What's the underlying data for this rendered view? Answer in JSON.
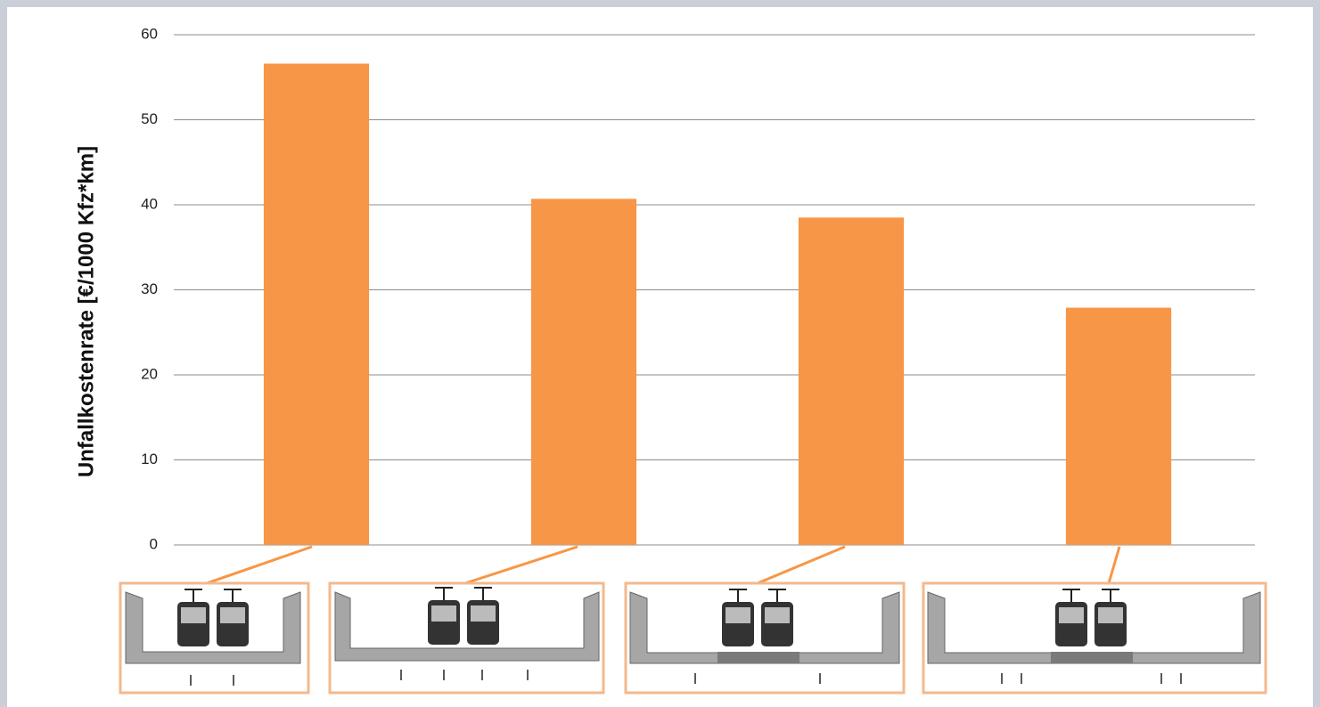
{
  "chart_data": {
    "type": "bar",
    "y_label": "Unfallkostenrate [€/1000 Kfz*km]",
    "categories": [
      null,
      null,
      null,
      null
    ],
    "values": [
      56.6,
      40.7,
      38.5,
      27.9
    ],
    "color": "#f79646",
    "ylim": [
      0,
      60
    ],
    "yticks": [
      0,
      10,
      20,
      30,
      40,
      50,
      60
    ],
    "grid": true
  }
}
